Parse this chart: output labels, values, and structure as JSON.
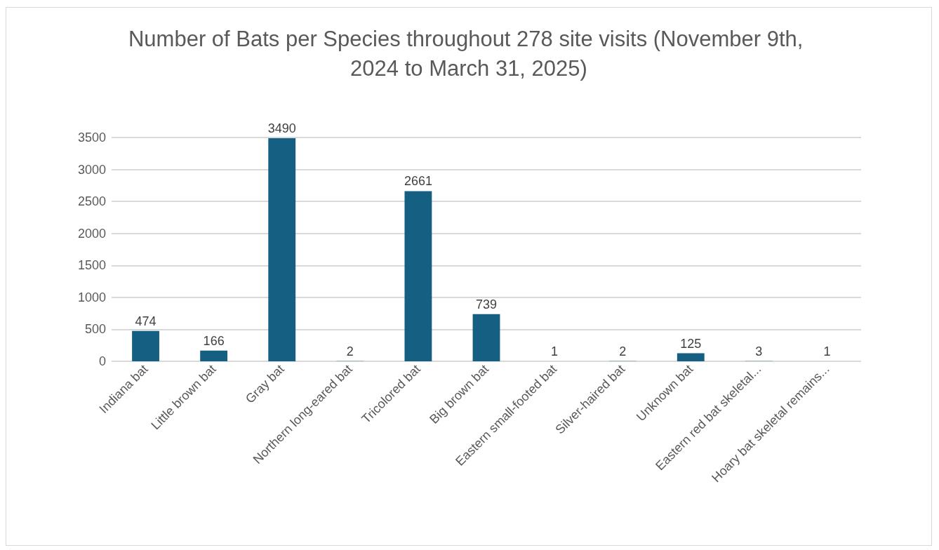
{
  "chart_data": {
    "type": "bar",
    "title": "Number of Bats per Species throughout 278 site visits (November 9th, 2024 to March 31, 2025)",
    "categories": [
      "Indiana bat",
      "Little brown bat",
      "Gray bat",
      "Northern long-eared bat",
      "Tricolored bat",
      "Big brown bat",
      "Eastern small-footed bat",
      "Silver-haired bat",
      "Unknown bat",
      "Eastern red bat skeletal...",
      "Hoary bat skeletal remains..."
    ],
    "values": [
      474,
      166,
      3490,
      2,
      2661,
      739,
      1,
      2,
      125,
      3,
      1
    ],
    "color": "#156082",
    "ylim": [
      0,
      3500
    ],
    "yticks": [
      0,
      500,
      1000,
      1500,
      2000,
      2500,
      3000,
      3500
    ],
    "grid": "y",
    "data_labels": true
  }
}
